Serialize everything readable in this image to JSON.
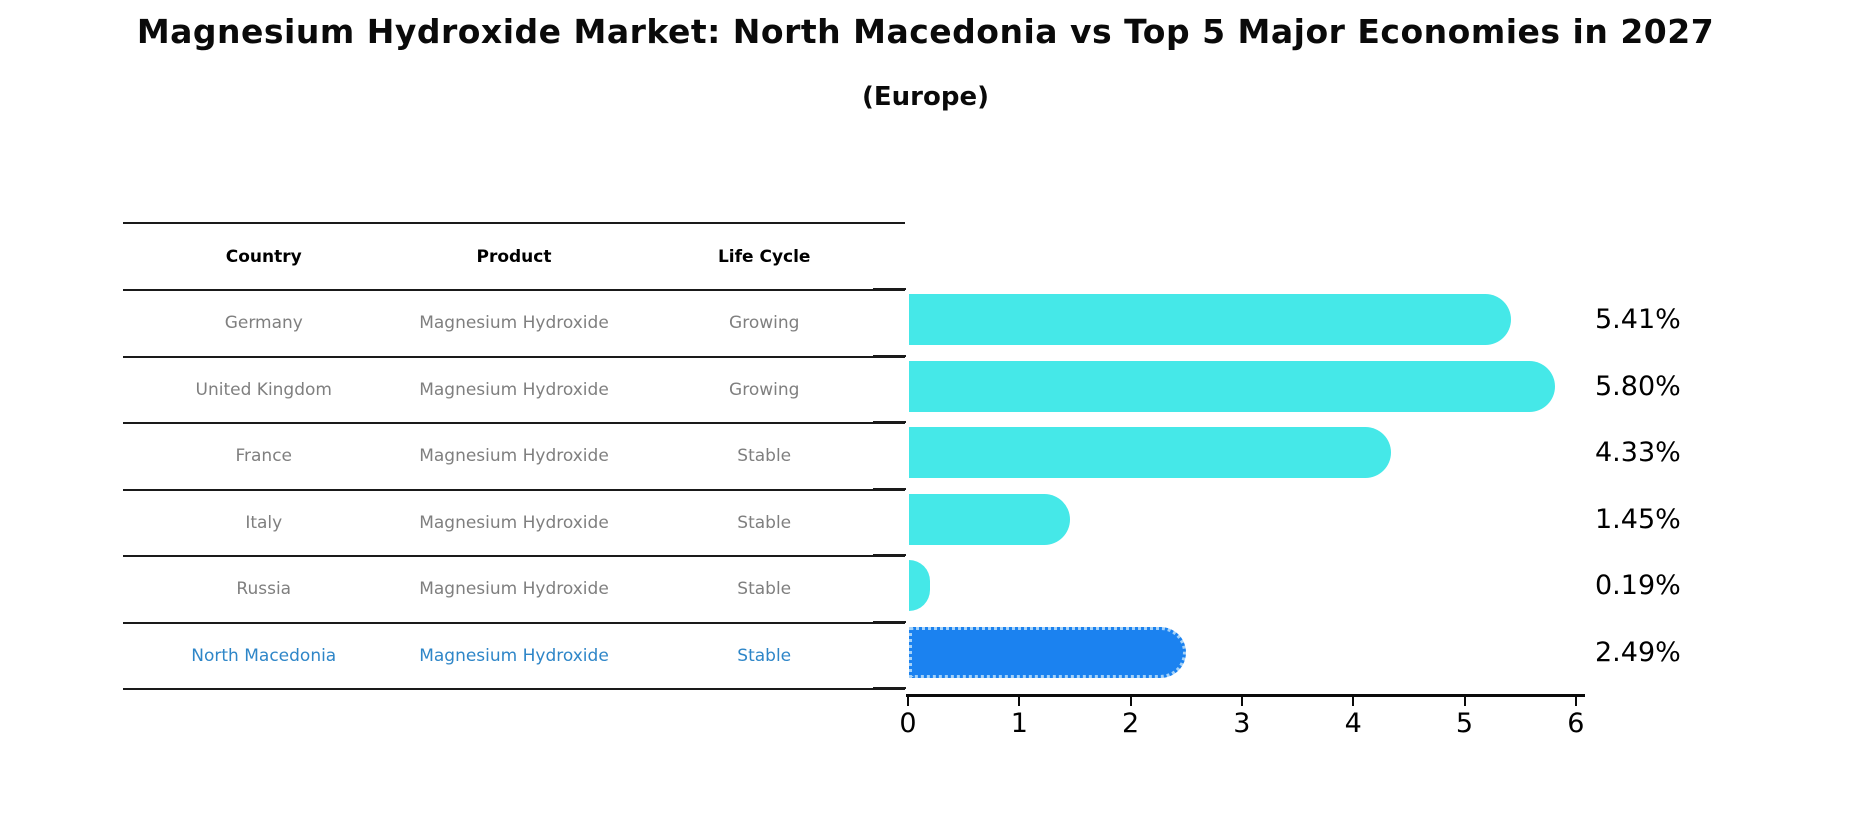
{
  "title": "Magnesium Hydroxide Market: North Macedonia vs Top 5 Major Economies in 2027",
  "subtitle": "(Europe)",
  "colors": {
    "bar_default": "#45e8e8",
    "bar_highlight": "#1b82f0",
    "bar_highlight_border": "#a5d2f8",
    "table_text": "#7f7f7f",
    "table_text_highlight": "#2e86c8",
    "axis": "#0a0a0a"
  },
  "table": {
    "headers": [
      "Country",
      "Product",
      "Life Cycle"
    ],
    "rows": [
      {
        "country": "Germany",
        "product": "Magnesium Hydroxide",
        "life_cycle": "Growing",
        "highlight": false
      },
      {
        "country": "United Kingdom",
        "product": "Magnesium Hydroxide",
        "life_cycle": "Growing",
        "highlight": false
      },
      {
        "country": "France",
        "product": "Magnesium Hydroxide",
        "life_cycle": "Stable",
        "highlight": false
      },
      {
        "country": "Italy",
        "product": "Magnesium Hydroxide",
        "life_cycle": "Stable",
        "highlight": false
      },
      {
        "country": "Russia",
        "product": "Magnesium Hydroxide",
        "life_cycle": "Stable",
        "highlight": false
      },
      {
        "country": "North Macedonia",
        "product": "Magnesium Hydroxide",
        "life_cycle": "Stable",
        "highlight": true
      }
    ]
  },
  "chart_data": {
    "type": "bar",
    "orientation": "horizontal",
    "title": "Magnesium Hydroxide Market: North Macedonia vs Top 5 Major Economies in 2027",
    "subtitle": "(Europe)",
    "categories": [
      "Germany",
      "United Kingdom",
      "France",
      "Italy",
      "Russia",
      "North Macedonia"
    ],
    "values": [
      5.41,
      5.8,
      4.33,
      1.45,
      0.19,
      2.49
    ],
    "value_labels": [
      "5.41%",
      "5.80%",
      "4.33%",
      "1.45%",
      "0.19%",
      "2.49%"
    ],
    "highlight_category": "North Macedonia",
    "xlabel": "",
    "ylabel": "",
    "xlim": [
      0,
      6
    ],
    "x_ticks": [
      0,
      1,
      2,
      3,
      4,
      5,
      6
    ],
    "grid": false,
    "legend": false
  }
}
